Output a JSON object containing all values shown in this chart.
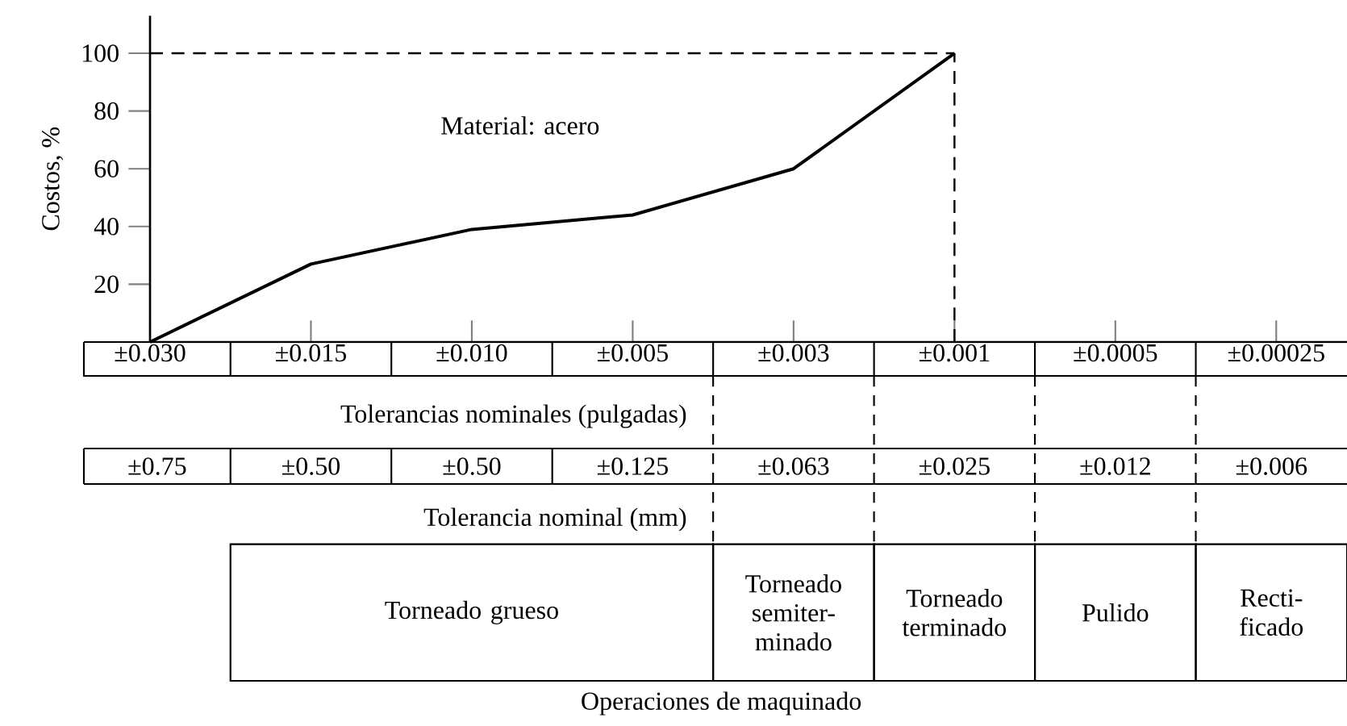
{
  "chart_data": {
    "type": "line",
    "ylabel": "Costos, %",
    "xlabel": "Tolerancias nominales (pulgadas)",
    "categories": [
      "±0.030",
      "±0.015",
      "±0.010",
      "±0.005",
      "±0.003",
      "±0.001",
      "±0.0005",
      "±0.00025"
    ],
    "values": [
      0,
      27,
      39,
      44,
      60,
      100,
      null,
      null
    ],
    "color": "#000000",
    "ylim": [
      0,
      113
    ],
    "yticks": [
      20,
      40,
      60,
      80,
      100
    ],
    "ref_lines": [
      {
        "axis": "y",
        "value": 100,
        "line_style": "dashed"
      },
      {
        "axis": "x",
        "value": "±0.001",
        "line_style": "dashed"
      }
    ],
    "annotations": [
      "Material: acero",
      "±0.75",
      "±0.50",
      "±0.50",
      "±0.125",
      "±0.063",
      "±0.025",
      "±0.012",
      "±0.006",
      "Tolerancia nominal (mm)",
      "Torneado grueso",
      "Torneado semiter-minado",
      "Torneado terminado",
      "Pulido",
      "Recti-ficado",
      "Operaciones de maquinado"
    ]
  }
}
